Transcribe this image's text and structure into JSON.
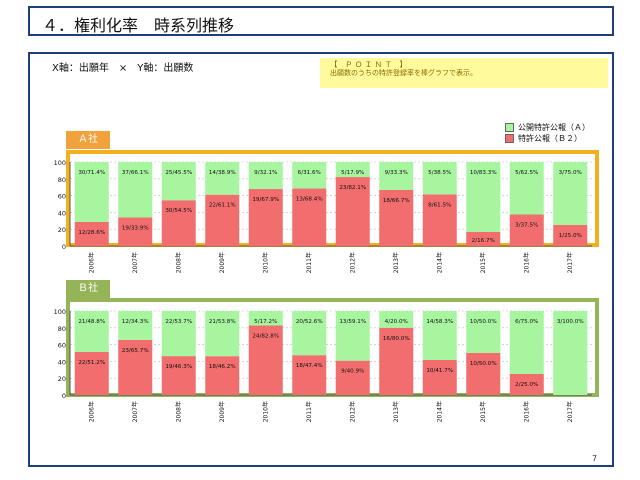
{
  "page": {
    "title": "４．権利化率　時系列推移",
    "axis_note": "X軸：出願年　×　Y軸：出願数",
    "point_title": "【　Ｐ Ｏ Ｉ Ｎ Ｔ　】",
    "point_text": "出願数のうちの特許登録率を棒グラフで表示。",
    "page_number": "7"
  },
  "colors": {
    "title_border": "#1f3f7a",
    "green": "#a8f5a0",
    "red": "#f26d6d",
    "company_a_frame": "#f2b01e",
    "company_a_tab": "#f2a23a",
    "company_b_frame": "#95b357",
    "company_b_tab": "#95b357",
    "point_bg": "#fffb9c"
  },
  "legend": {
    "green_label": "公開特許公報（Ａ）",
    "red_label": "特許公報（Ｂ２）"
  },
  "chart_data": [
    {
      "type": "bar",
      "stacked": true,
      "company": "Ａ社",
      "categories": [
        "2006年",
        "2007年",
        "2008年",
        "2009年",
        "2010年",
        "2011年",
        "2012年",
        "2013年",
        "2014年",
        "2015年",
        "2016年",
        "2017年"
      ],
      "y_ticks": [
        "0",
        "20",
        "40",
        "60",
        "80",
        "100"
      ],
      "ylim": [
        0,
        100
      ],
      "grid": true,
      "series": [
        {
          "name": "特許公報（Ｂ２）",
          "values": [
            28.6,
            33.9,
            54.5,
            61.1,
            67.9,
            68.4,
            82.1,
            66.7,
            61.5,
            16.7,
            37.5,
            25.0
          ],
          "labels": [
            "12/28.6%",
            "19/33.9%",
            "30/54.5%",
            "22/61.1%",
            "19/67.9%",
            "13/68.4%",
            "23/82.1%",
            "18/66.7%",
            "8/61.5%",
            "2/16.7%",
            "3/37.5%",
            "1/25.0%"
          ]
        },
        {
          "name": "公開特許公報（Ａ）",
          "values": [
            71.4,
            66.1,
            45.5,
            38.9,
            32.1,
            31.6,
            17.9,
            33.3,
            38.5,
            83.3,
            62.5,
            75.0
          ],
          "labels": [
            "30/71.4%",
            "37/66.1%",
            "25/45.5%",
            "14/38.9%",
            "9/32.1%",
            "6/31.6%",
            "5/17.9%",
            "9/33.3%",
            "5/38.5%",
            "10/83.3%",
            "5/62.5%",
            "3/75.0%"
          ]
        }
      ]
    },
    {
      "type": "bar",
      "stacked": true,
      "company": "Ｂ社",
      "categories": [
        "2006年",
        "2007年",
        "2008年",
        "2009年",
        "2010年",
        "2011年",
        "2012年",
        "2013年",
        "2014年",
        "2015年",
        "2016年",
        "2017年"
      ],
      "y_ticks": [
        "0",
        "20",
        "40",
        "60",
        "80",
        "100"
      ],
      "ylim": [
        0,
        100
      ],
      "grid": true,
      "series": [
        {
          "name": "特許公報（Ｂ２）",
          "values": [
            51.2,
            65.7,
            46.3,
            46.2,
            82.8,
            47.4,
            40.9,
            80.0,
            41.7,
            50.0,
            25.0,
            0
          ],
          "labels": [
            "22/51.2%",
            "23/65.7%",
            "19/46.3%",
            "18/46.2%",
            "24/82.8%",
            "18/47.4%",
            "9/40.9%",
            "16/80.0%",
            "10/41.7%",
            "10/50.0%",
            "2/25.0%",
            ""
          ]
        },
        {
          "name": "公開特許公報（Ａ）",
          "values": [
            48.8,
            34.3,
            53.7,
            53.8,
            17.2,
            52.6,
            59.1,
            20.0,
            58.3,
            50.0,
            75.0,
            100.0
          ],
          "labels": [
            "21/48.8%",
            "12/34.3%",
            "22/53.7%",
            "21/53.8%",
            "5/17.2%",
            "20/52.6%",
            "13/59.1%",
            "4/20.0%",
            "14/58.3%",
            "10/50.0%",
            "6/75.0%",
            "3/100.0%"
          ]
        }
      ]
    }
  ]
}
